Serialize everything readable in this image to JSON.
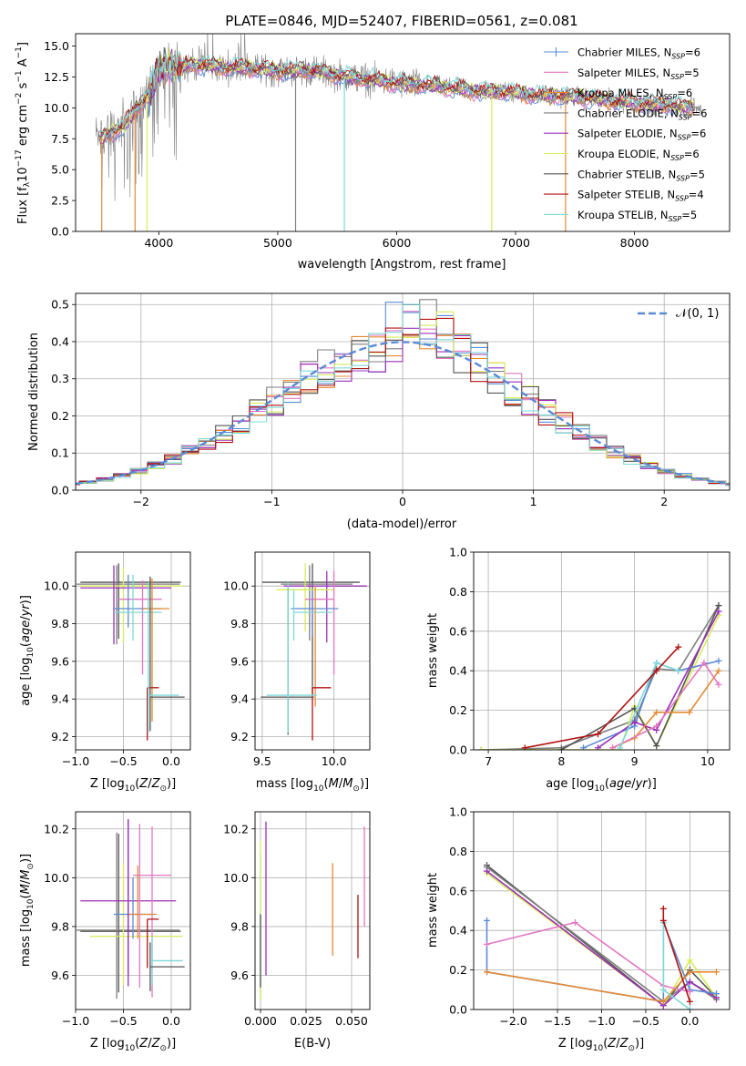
{
  "colors": {
    "Chabrier MILES": "#5b8bd6",
    "Salpeter MILES": "#e377c2",
    "Kroupa MILES": "#e58a33",
    "Chabrier ELODIE": "#7f7f7f",
    "Salpeter ELODIE": "#9b30b8",
    "Kroupa ELODIE": "#d8ec5a",
    "Chabrier STELIB": "#555555",
    "Salpeter STELIB": "#b21212",
    "Kroupa STELIB": "#7fd8d8"
  },
  "chart_data": [
    {
      "type": "line",
      "title": "PLATE=0846, MJD=52407, FIBERID=0561, z=0.081",
      "xlabel": "wavelength [Angstrom, rest frame]",
      "ylabel": "Flux [fλ10⁻¹⁷ erg cm⁻² s⁻¹ A⁻¹]",
      "xlim": [
        3300,
        8800
      ],
      "ylim": [
        0,
        16
      ],
      "xticks": [
        4000,
        5000,
        6000,
        7000,
        8000
      ],
      "yticks": [
        0.0,
        2.5,
        5.0,
        7.5,
        10.0,
        12.5,
        15.0
      ],
      "legend_position": "top-right",
      "legend": [
        "Chabrier MILES, N_SSP=6",
        "Salpeter MILES, N_SSP=5",
        "Kroupa MILES, N_SSP=6",
        "Chabrier ELODIE, N_SSP=6",
        "Salpeter ELODIE, N_SSP=6",
        "Kroupa ELODIE, N_SSP=6",
        "Chabrier STELIB, N_SSP=5",
        "Salpeter STELIB, N_SSP=4",
        "Kroupa STELIB, N_SSP=5"
      ],
      "model_envelope": {
        "x": [
          3500,
          3700,
          3900,
          4000,
          4100,
          4300,
          4500,
          4800,
          5000,
          5300,
          5600,
          6000,
          6300,
          6600,
          6900,
          7200,
          7500,
          7800,
          8100,
          8300,
          8500
        ],
        "y": [
          7.5,
          8.5,
          11.0,
          13.0,
          13.3,
          13.5,
          13.3,
          13.2,
          13.0,
          13.0,
          12.5,
          12.0,
          11.8,
          11.4,
          11.3,
          11.0,
          10.9,
          10.6,
          10.3,
          10.2,
          10.0
        ]
      },
      "dips_wavelength": [
        3520,
        3800,
        3900,
        5150,
        5560,
        6800,
        7420
      ]
    },
    {
      "type": "histogram",
      "xlabel": "(data-model)/error",
      "ylabel": "Normed distribution",
      "xlim": [
        -2.5,
        2.5
      ],
      "ylim": [
        0,
        0.53
      ],
      "xticks": [
        -2,
        -1,
        0,
        1,
        2
      ],
      "yticks": [
        0.0,
        0.1,
        0.2,
        0.3,
        0.4,
        0.5
      ],
      "legend_position": "top-right",
      "legend": [
        "𝒩(0, 1)"
      ],
      "reference_curve": "normal pdf mean 0 sd 1"
    },
    {
      "type": "errorbar",
      "xlabel": "Z [log₁₀(Z/Z⊙)]",
      "ylabel": "age  [log₁₀(age/yr)]",
      "xlim": [
        -1.0,
        0.2
      ],
      "ylim": [
        9.13,
        10.18
      ],
      "xticks": [
        -1.0,
        -0.5,
        0.0
      ],
      "yticks": [
        9.2,
        9.4,
        9.6,
        9.8,
        10.0
      ]
    },
    {
      "type": "errorbar",
      "xlabel": "mass [log₁₀(M/M⊙)]",
      "xlim": [
        9.45,
        10.25
      ],
      "ylim": [
        9.13,
        10.18
      ],
      "xticks": [
        9.5,
        10.0
      ],
      "yticks": [
        9.2,
        9.4,
        9.6,
        9.8,
        10.0
      ]
    },
    {
      "type": "line",
      "xlabel": "age  [log₁₀(age/yr)]",
      "ylabel": "mass weight",
      "xlim": [
        6.8,
        10.3
      ],
      "ylim": [
        0,
        1.0
      ],
      "xticks": [
        7,
        8,
        9,
        10
      ],
      "yticks": [
        0.0,
        0.2,
        0.4,
        0.6,
        0.8,
        1.0
      ]
    },
    {
      "type": "errorbar",
      "xlabel": "Z [log₁₀(Z/Z⊙)]",
      "ylabel": "mass [log₁₀(M/M⊙)]",
      "xlim": [
        -1.0,
        0.2
      ],
      "ylim": [
        9.46,
        10.27
      ],
      "xticks": [
        -1.0,
        -0.5,
        0.0
      ],
      "yticks": [
        9.6,
        9.8,
        10.0,
        10.2
      ]
    },
    {
      "type": "errorbar",
      "xlabel": "E(B-V)",
      "xlim": [
        -0.003,
        0.06
      ],
      "ylim": [
        9.46,
        10.27
      ],
      "xticks": [
        0.0,
        0.025,
        0.05
      ],
      "yticks": [
        9.6,
        9.8,
        10.0,
        10.2
      ]
    },
    {
      "type": "line",
      "xlabel": "Z [log₁₀(Z/Z⊙)]",
      "ylabel": "mass weight",
      "xlim": [
        -2.45,
        0.45
      ],
      "ylim": [
        0,
        1.0
      ],
      "xticks": [
        -2.0,
        -1.5,
        -1.0,
        -0.5,
        0.0
      ],
      "yticks": [
        0.0,
        0.2,
        0.4,
        0.6,
        0.8,
        1.0
      ]
    }
  ]
}
